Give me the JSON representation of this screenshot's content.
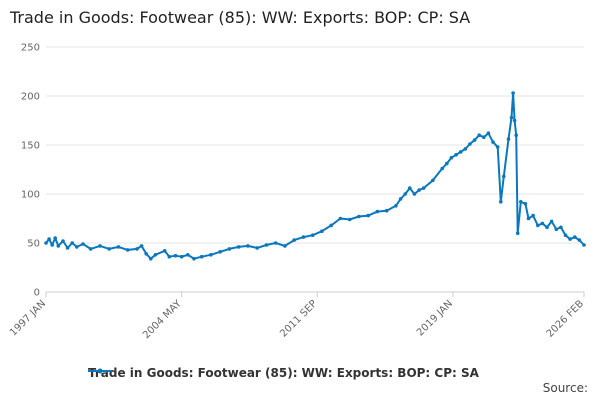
{
  "chart_data": {
    "type": "line",
    "title": "Trade in Goods: Footwear (85): WW: Exports: BOP: CP: SA",
    "xlabel": "",
    "ylabel": "",
    "ylim": [
      0,
      250
    ],
    "yticks": [
      0,
      50,
      100,
      150,
      200,
      250
    ],
    "xlim": [
      "1997-01",
      "2026-02"
    ],
    "xticks": [
      "1997 JAN",
      "2004 MAY",
      "2011 SEP",
      "2019 JAN",
      "2026 FEB"
    ],
    "grid": true,
    "legend_position": "bottom",
    "series": [
      {
        "name": "Trade in Goods: Footwear (85): WW: Exports: BOP: CP: SA",
        "color": "#0b78bd",
        "points": [
          [
            "1997-01",
            50
          ],
          [
            "1997-03",
            54
          ],
          [
            "1997-05",
            48
          ],
          [
            "1997-07",
            55
          ],
          [
            "1997-09",
            47
          ],
          [
            "1997-12",
            52
          ],
          [
            "1998-03",
            45
          ],
          [
            "1998-06",
            50
          ],
          [
            "1998-09",
            46
          ],
          [
            "1999-01",
            49
          ],
          [
            "1999-06",
            44
          ],
          [
            "1999-12",
            47
          ],
          [
            "2000-06",
            44
          ],
          [
            "2000-12",
            46
          ],
          [
            "2001-06",
            43
          ],
          [
            "2001-12",
            44
          ],
          [
            "2002-03",
            47
          ],
          [
            "2002-06",
            39
          ],
          [
            "2002-09",
            34
          ],
          [
            "2002-12",
            38
          ],
          [
            "2003-06",
            42
          ],
          [
            "2003-09",
            36
          ],
          [
            "2004-01",
            37
          ],
          [
            "2004-05",
            36
          ],
          [
            "2004-09",
            38
          ],
          [
            "2005-01",
            34
          ],
          [
            "2005-06",
            36
          ],
          [
            "2005-12",
            38
          ],
          [
            "2006-06",
            41
          ],
          [
            "2006-12",
            44
          ],
          [
            "2007-06",
            46
          ],
          [
            "2007-12",
            47
          ],
          [
            "2008-06",
            45
          ],
          [
            "2008-12",
            48
          ],
          [
            "2009-06",
            50
          ],
          [
            "2009-12",
            47
          ],
          [
            "2010-06",
            53
          ],
          [
            "2010-12",
            56
          ],
          [
            "2011-06",
            58
          ],
          [
            "2011-12",
            62
          ],
          [
            "2012-06",
            68
          ],
          [
            "2012-12",
            75
          ],
          [
            "2013-06",
            74
          ],
          [
            "2013-12",
            77
          ],
          [
            "2014-06",
            78
          ],
          [
            "2014-12",
            82
          ],
          [
            "2015-06",
            83
          ],
          [
            "2015-12",
            88
          ],
          [
            "2016-03",
            95
          ],
          [
            "2016-06",
            100
          ],
          [
            "2016-09",
            106
          ],
          [
            "2016-12",
            100
          ],
          [
            "2017-03",
            104
          ],
          [
            "2017-06",
            106
          ],
          [
            "2017-12",
            114
          ],
          [
            "2018-06",
            126
          ],
          [
            "2018-09",
            131
          ],
          [
            "2018-12",
            137
          ],
          [
            "2019-03",
            140
          ],
          [
            "2019-06",
            143
          ],
          [
            "2019-09",
            146
          ],
          [
            "2019-12",
            151
          ],
          [
            "2020-03",
            155
          ],
          [
            "2020-06",
            160
          ],
          [
            "2020-09",
            158
          ],
          [
            "2020-12",
            162
          ],
          [
            "2021-03",
            153
          ],
          [
            "2021-06",
            148
          ],
          [
            "2021-08",
            92
          ],
          [
            "2021-10",
            118
          ],
          [
            "2022-01",
            156
          ],
          [
            "2022-03",
            178
          ],
          [
            "2022-04",
            203
          ],
          [
            "2022-05",
            175
          ],
          [
            "2022-06",
            160
          ],
          [
            "2022-07",
            60
          ],
          [
            "2022-09",
            92
          ],
          [
            "2022-12",
            90
          ],
          [
            "2023-02",
            75
          ],
          [
            "2023-05",
            78
          ],
          [
            "2023-08",
            68
          ],
          [
            "2023-11",
            70
          ],
          [
            "2024-02",
            66
          ],
          [
            "2024-05",
            72
          ],
          [
            "2024-08",
            64
          ],
          [
            "2024-11",
            66
          ],
          [
            "2025-02",
            58
          ],
          [
            "2025-05",
            54
          ],
          [
            "2025-08",
            56
          ],
          [
            "2025-11",
            53
          ],
          [
            "2026-02",
            48
          ]
        ]
      }
    ]
  },
  "footer": {
    "source_label": "Source:"
  }
}
